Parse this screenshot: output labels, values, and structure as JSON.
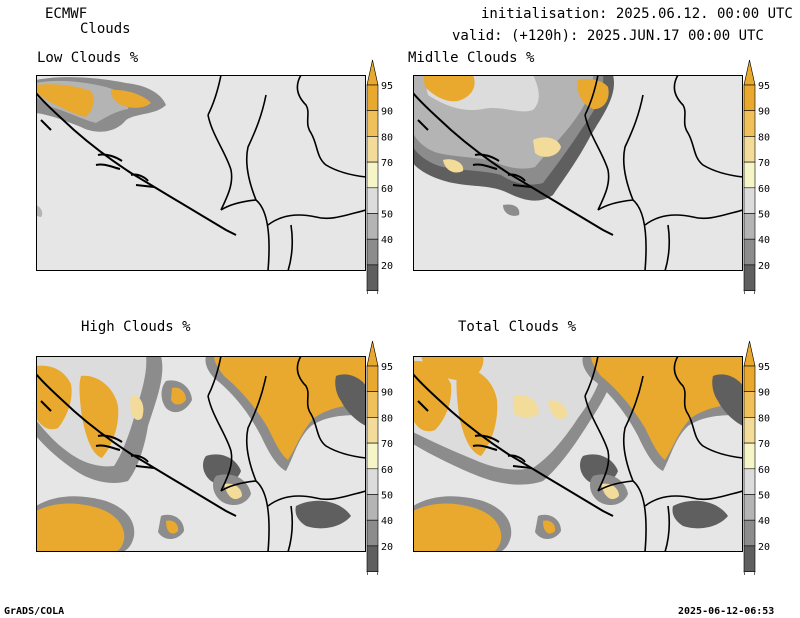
{
  "header": {
    "model": "ECMWF",
    "product": "Clouds",
    "init_line": "initialisation: 2025.06.12. 00:00 UTC",
    "valid_line": "valid: (+120h): 2025.JUN.17 00:00 UTC"
  },
  "panels": [
    {
      "id": "low",
      "title": "Low Clouds %"
    },
    {
      "id": "middle",
      "title": "Midlle Clouds %"
    },
    {
      "id": "high",
      "title": "High Clouds %"
    },
    {
      "id": "total",
      "title": "Total Clouds %"
    }
  ],
  "colorbar": {
    "labels": [
      "95",
      "90",
      "80",
      "70",
      "60",
      "50",
      "40",
      "20"
    ],
    "colors": {
      "c95": "#e8a92e",
      "c90": "#f0c15a",
      "c80": "#f3dc9a",
      "c70": "#f6f5c8",
      "c60": "#dcdcdc",
      "c50": "#b4b4b4",
      "c40": "#8c8c8c",
      "c20": "#5f5f5f",
      "background": "#e6e6e6"
    }
  },
  "footer": {
    "left": "GrADS/COLA",
    "right": "2025-06-12-06:53"
  }
}
